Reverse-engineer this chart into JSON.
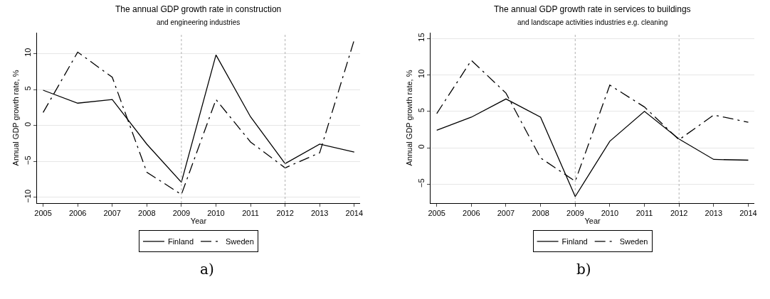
{
  "chart_data": [
    {
      "type": "line",
      "title": "The annual GDP growth rate in construction",
      "subtitle": "and engineering industries",
      "xlabel": "Year",
      "ylabel": "Annual GDP growth rate, %",
      "x": [
        2005,
        2006,
        2007,
        2008,
        2009,
        2010,
        2011,
        2012,
        2013,
        2014
      ],
      "series": [
        {
          "name": "Finland",
          "color": "#000000",
          "line_style": "solid",
          "values": [
            4.9,
            3.1,
            3.6,
            -2.6,
            -7.9,
            9.8,
            1.2,
            -5.3,
            -2.6,
            -3.7
          ]
        },
        {
          "name": "Sweden",
          "color": "#000000",
          "line_style": "dashed",
          "values": [
            1.8,
            10.2,
            6.7,
            -6.5,
            -9.6,
            3.6,
            -2.3,
            -5.9,
            -3.8,
            11.9
          ]
        }
      ],
      "xlim": [
        2004.83,
        2014.16
      ],
      "ylim": [
        -10.8,
        12.9
      ],
      "xticks": [
        2005,
        2006,
        2007,
        2008,
        2009,
        2010,
        2011,
        2012,
        2013,
        2014
      ],
      "yticks": [
        -10,
        -5,
        0,
        5,
        10
      ],
      "ref_lines": [
        {
          "axis": "x",
          "value": 2009,
          "color": "#b0b0b0",
          "line_style": "dotted"
        },
        {
          "axis": "x",
          "value": 2012,
          "color": "#b0b0b0",
          "line_style": "dotted"
        }
      ],
      "grid": "y",
      "legend": "bottom",
      "annotations": [
        "a)"
      ]
    },
    {
      "type": "line",
      "title": "The annual GDP growth rate in services to buildings",
      "subtitle": "and landscape activities industries e.g. cleaning",
      "xlabel": "Year",
      "ylabel": "Annual GDP growth rate, %",
      "x": [
        2005,
        2006,
        2007,
        2008,
        2009,
        2010,
        2011,
        2012,
        2013,
        2014
      ],
      "series": [
        {
          "name": "Finland",
          "color": "#000000",
          "line_style": "solid",
          "values": [
            2.4,
            4.2,
            6.7,
            4.2,
            -6.7,
            0.9,
            5.0,
            1.2,
            -1.6,
            -1.7
          ]
        },
        {
          "name": "Sweden",
          "color": "#000000",
          "line_style": "dashed",
          "values": [
            4.7,
            12.0,
            7.5,
            -1.4,
            -4.6,
            8.6,
            5.6,
            1.1,
            4.5,
            3.5
          ]
        }
      ],
      "xlim": [
        2004.83,
        2014.17
      ],
      "ylim": [
        -7.6,
        15.8
      ],
      "xticks": [
        2005,
        2006,
        2007,
        2008,
        2009,
        2010,
        2011,
        2012,
        2013,
        2014
      ],
      "yticks": [
        -5,
        0,
        5,
        10,
        15
      ],
      "ref_lines": [
        {
          "axis": "x",
          "value": 2009,
          "color": "#b0b0b0",
          "line_style": "dotted"
        },
        {
          "axis": "x",
          "value": 2012,
          "color": "#b0b0b0",
          "line_style": "dotted"
        }
      ],
      "grid": "y",
      "legend": "bottom",
      "annotations": [
        "b)"
      ]
    }
  ]
}
